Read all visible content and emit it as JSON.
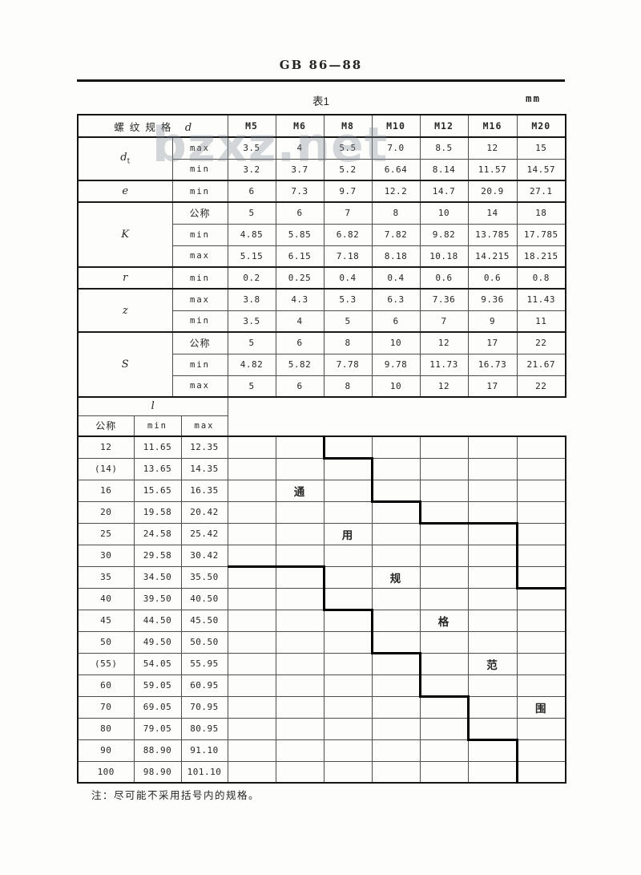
{
  "header": {
    "standard_number": "GB 86—88",
    "table_caption": "表1",
    "unit_label": "mm"
  },
  "watermark": {
    "text": "bzxz.net"
  },
  "upper_table": {
    "corner_label_cjk": "螺纹规格",
    "corner_label_symbol": "d",
    "col_headers": [
      "M5",
      "M6",
      "M8",
      "M10",
      "M12",
      "M16",
      "M20"
    ],
    "groups": [
      {
        "prop": "d",
        "prop_sub": "t",
        "rows": [
          {
            "sub": "max",
            "values": [
              "3.5",
              "4",
              "5.5",
              "7.0",
              "8.5",
              "12",
              "15"
            ]
          },
          {
            "sub": "min",
            "values": [
              "3.2",
              "3.7",
              "5.2",
              "6.64",
              "8.14",
              "11.57",
              "14.57"
            ]
          }
        ]
      },
      {
        "prop": "e",
        "prop_sub": "",
        "rows": [
          {
            "sub": "min",
            "values": [
              "6",
              "7.3",
              "9.7",
              "12.2",
              "14.7",
              "20.9",
              "27.1"
            ]
          }
        ]
      },
      {
        "prop": "K",
        "prop_sub": "",
        "rows": [
          {
            "sub": "公称",
            "values": [
              "5",
              "6",
              "7",
              "8",
              "10",
              "14",
              "18"
            ]
          },
          {
            "sub": "min",
            "values": [
              "4.85",
              "5.85",
              "6.82",
              "7.82",
              "9.82",
              "13.785",
              "17.785"
            ]
          },
          {
            "sub": "max",
            "values": [
              "5.15",
              "6.15",
              "7.18",
              "8.18",
              "10.18",
              "14.215",
              "18.215"
            ]
          }
        ]
      },
      {
        "prop": "r",
        "prop_sub": "",
        "rows": [
          {
            "sub": "min",
            "values": [
              "0.2",
              "0.25",
              "0.4",
              "0.4",
              "0.6",
              "0.6",
              "0.8"
            ]
          }
        ]
      },
      {
        "prop": "z",
        "prop_sub": "",
        "rows": [
          {
            "sub": "max",
            "values": [
              "3.8",
              "4.3",
              "5.3",
              "6.3",
              "7.36",
              "9.36",
              "11.43"
            ]
          },
          {
            "sub": "min",
            "values": [
              "3.5",
              "4",
              "5",
              "6",
              "7",
              "9",
              "11"
            ]
          }
        ]
      },
      {
        "prop": "S",
        "prop_sub": "",
        "rows": [
          {
            "sub": "公称",
            "values": [
              "5",
              "6",
              "8",
              "10",
              "12",
              "17",
              "22"
            ]
          },
          {
            "sub": "min",
            "values": [
              "4.82",
              "5.82",
              "7.78",
              "9.78",
              "11.73",
              "16.73",
              "21.67"
            ]
          },
          {
            "sub": "max",
            "values": [
              "5",
              "6",
              "8",
              "10",
              "12",
              "17",
              "22"
            ]
          }
        ]
      }
    ]
  },
  "lower_table": {
    "l_label": "l",
    "headers": [
      "公称",
      "min",
      "max"
    ],
    "band_label": "通用规格范围",
    "rows": [
      {
        "nominal": "12",
        "min": "11.65",
        "max": "12.35",
        "char": "",
        "char_col": -1,
        "thick_left": [
          2
        ],
        "thick_bottom": [
          2
        ]
      },
      {
        "nominal": "(14)",
        "min": "13.65",
        "max": "14.35",
        "char": "",
        "char_col": -1,
        "thick_left": [
          3
        ],
        "thick_bottom": []
      },
      {
        "nominal": "16",
        "min": "15.65",
        "max": "16.35",
        "char": "通",
        "char_col": 1,
        "thick_left": [
          3
        ],
        "thick_bottom": [
          3
        ]
      },
      {
        "nominal": "20",
        "min": "19.58",
        "max": "20.42",
        "char": "",
        "char_col": -1,
        "thick_left": [
          4
        ],
        "thick_bottom": [
          4,
          5
        ]
      },
      {
        "nominal": "25",
        "min": "24.58",
        "max": "25.42",
        "char": "用",
        "char_col": 2,
        "thick_left": [
          6
        ],
        "thick_bottom": []
      },
      {
        "nominal": "30",
        "min": "29.58",
        "max": "30.42",
        "char": "",
        "char_col": -1,
        "thick_left": [
          6
        ],
        "thick_bottom": [
          0,
          1
        ]
      },
      {
        "nominal": "35",
        "min": "34.50",
        "max": "35.50",
        "char": "规",
        "char_col": 3,
        "thick_left": [
          2,
          6
        ],
        "thick_bottom": [
          6
        ]
      },
      {
        "nominal": "40",
        "min": "39.50",
        "max": "40.50",
        "char": "",
        "char_col": -1,
        "thick_left": [
          2
        ],
        "thick_bottom": [
          2
        ]
      },
      {
        "nominal": "45",
        "min": "44.50",
        "max": "45.50",
        "char": "格",
        "char_col": 4,
        "thick_left": [
          3
        ],
        "thick_bottom": []
      },
      {
        "nominal": "50",
        "min": "49.50",
        "max": "50.50",
        "char": "",
        "char_col": -1,
        "thick_left": [
          3
        ],
        "thick_bottom": [
          3
        ]
      },
      {
        "nominal": "(55)",
        "min": "54.05",
        "max": "55.95",
        "char": "范",
        "char_col": 5,
        "thick_left": [
          4
        ],
        "thick_bottom": []
      },
      {
        "nominal": "60",
        "min": "59.05",
        "max": "60.95",
        "char": "",
        "char_col": -1,
        "thick_left": [
          4
        ],
        "thick_bottom": [
          4
        ]
      },
      {
        "nominal": "70",
        "min": "69.05",
        "max": "70.95",
        "char": "围",
        "char_col": 6,
        "thick_left": [
          5
        ],
        "thick_bottom": []
      },
      {
        "nominal": "80",
        "min": "79.05",
        "max": "80.95",
        "char": "",
        "char_col": -1,
        "thick_left": [
          5
        ],
        "thick_bottom": [
          5
        ]
      },
      {
        "nominal": "90",
        "min": "88.90",
        "max": "91.10",
        "char": "",
        "char_col": -1,
        "thick_left": [
          6
        ],
        "thick_bottom": []
      },
      {
        "nominal": "100",
        "min": "98.90",
        "max": "101.10",
        "char": "",
        "char_col": -1,
        "thick_left": [
          6
        ],
        "thick_bottom": []
      }
    ]
  },
  "footnote": {
    "text": "注：尽可能不采用括号内的规格。"
  }
}
